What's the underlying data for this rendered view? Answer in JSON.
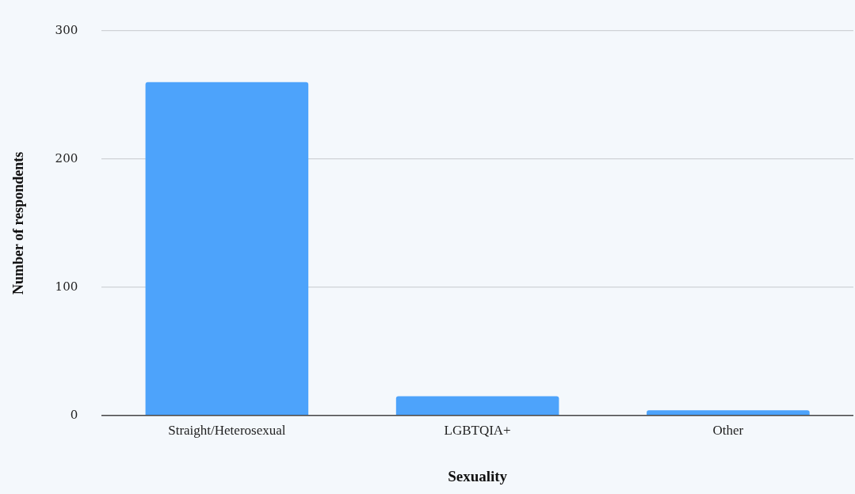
{
  "chart_data": {
    "type": "bar",
    "xlabel": "Sexuality",
    "ylabel": "Number of respondents",
    "categories": [
      "Straight/Heterosexual",
      "LGBTQIA+",
      "Other"
    ],
    "values": [
      260,
      15,
      4
    ],
    "color": "#4da3fb",
    "ylim": [
      0,
      300
    ],
    "yticks": [
      0,
      100,
      200,
      300
    ],
    "grid": "y",
    "legend": false
  }
}
